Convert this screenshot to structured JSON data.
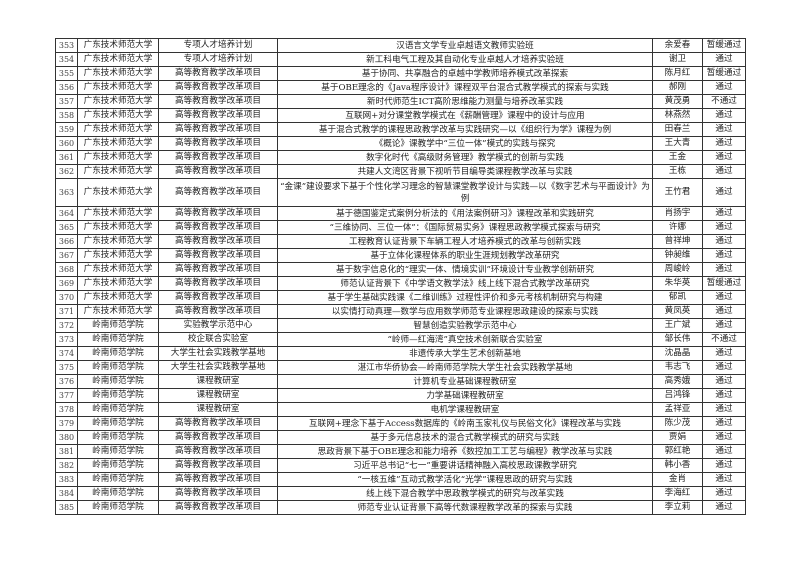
{
  "table": {
    "rows": [
      [
        "353",
        "广东技术师范大学",
        "专项人才培养计划",
        "汉语言文学专业卓越语文教师实验班",
        "余爱春",
        "暂缓通过"
      ],
      [
        "354",
        "广东技术师范大学",
        "专项人才培养计划",
        "新工科电气工程及其自动化专业卓越人才培养实验班",
        "谢卫",
        "通过"
      ],
      [
        "355",
        "广东技术师范大学",
        "高等教育教学改革项目",
        "基于协同、共享融合的卓越中学教师培养模式改革探索",
        "陈月红",
        "暂缓通过"
      ],
      [
        "356",
        "广东技术师范大学",
        "高等教育教学改革项目",
        "基于OBE理念的《Java程序设计》课程双平台混合式教学模式的探索与实践",
        "郝刚",
        "通过"
      ],
      [
        "357",
        "广东技术师范大学",
        "高等教育教学改革项目",
        "新时代师范生ICT高阶思维能力测量与培养改革实践",
        "黄茂勇",
        "不通过"
      ],
      [
        "358",
        "广东技术师范大学",
        "高等教育教学改革项目",
        "互联网+对分课堂教学模式在《薪酬管理》课程中的设计与应用",
        "林燕然",
        "通过"
      ],
      [
        "359",
        "广东技术师范大学",
        "高等教育教学改革项目",
        "基于混合式教学的课程思政教学改革与实践研究—以《组织行为学》课程为例",
        "田春兰",
        "通过"
      ],
      [
        "360",
        "广东技术师范大学",
        "高等教育教学改革项目",
        "《概论》课教学中“三位一体”模式的实践与探究",
        "王大青",
        "通过"
      ],
      [
        "361",
        "广东技术师范大学",
        "高等教育教学改革项目",
        "数字化时代《高级财务管理》教学模式的创新与实践",
        "王金",
        "通过"
      ],
      [
        "362",
        "广东技术师范大学",
        "高等教育教学改革项目",
        "共建人文湾区背景下视听节目编导类课程教学改革与实践",
        "王栋",
        "通过"
      ],
      [
        "363",
        "广东技术师范大学",
        "高等教育教学改革项目",
        "“金课”建设要求下基于个性化学习理念的智慧课堂教学设计与实践—以《数字艺术与平面设计》为例",
        "王竹君",
        "通过"
      ],
      [
        "364",
        "广东技术师范大学",
        "高等教育教学改革项目",
        "基于德国鉴定式案例分析法的《用法案例研习》课程改革和实践研究",
        "肖扬宇",
        "通过"
      ],
      [
        "365",
        "广东技术师范大学",
        "高等教育教学改革项目",
        "“三维协同、三位一体”：《国际贸易实务》课程思政教学模式探索与研究",
        "许娜",
        "通过"
      ],
      [
        "366",
        "广东技术师范大学",
        "高等教育教学改革项目",
        "工程教育认证背景下车辆工程人才培养模式的改革与创新实践",
        "曾祥坤",
        "通过"
      ],
      [
        "367",
        "广东技术师范大学",
        "高等教育教学改革项目",
        "基于立体化课程体系的职业生涯规划教学改革研究",
        "钟昶维",
        "通过"
      ],
      [
        "368",
        "广东技术师范大学",
        "高等教育教学改革项目",
        "基于数字信息化的“理实一体、情境实训”环境设计专业教学创新研究",
        "周峻岭",
        "通过"
      ],
      [
        "369",
        "广东技术师范大学",
        "高等教育教学改革项目",
        "师范认证背景下《中学语文教学法》线上线下混合式教学改革研究",
        "朱华英",
        "暂缓通过"
      ],
      [
        "370",
        "广东技术师范大学",
        "高等教育教学改革项目",
        "基于学生基础实践课《二维训练》过程性评价和多元考核机制研究与构建",
        "郁凯",
        "通过"
      ],
      [
        "371",
        "广东技术师范大学",
        "高等教育教学改革项目",
        "以实情打动真理—数学与应用数学师范专业课程思政建设的探索与实践",
        "黄凤英",
        "通过"
      ],
      [
        "372",
        "岭南师范学院",
        "实验教学示范中心",
        "智慧创造实验教学示范中心",
        "王广斌",
        "通过"
      ],
      [
        "373",
        "岭南师范学院",
        "校企联合实验室",
        "“岭师—红海湾”真空技术创新联合实验室",
        "邹长伟",
        "不通过"
      ],
      [
        "374",
        "岭南师范学院",
        "大学生社会实践教学基地",
        "非遗传承大学生艺术创新基地",
        "沈晶晶",
        "通过"
      ],
      [
        "375",
        "岭南师范学院",
        "大学生社会实践教学基地",
        "湛江市华侨协会—岭南师范学院大学生社会实践教学基地",
        "韦志飞",
        "通过"
      ],
      [
        "376",
        "岭南师范学院",
        "课程教研室",
        "计算机专业基础课程教研室",
        "高秀娥",
        "通过"
      ],
      [
        "377",
        "岭南师范学院",
        "课程教研室",
        "力学基础课程教研室",
        "吕鸿锋",
        "通过"
      ],
      [
        "378",
        "岭南师范学院",
        "课程教研室",
        "电机学课程教研室",
        "孟祥亚",
        "通过"
      ],
      [
        "379",
        "岭南师范学院",
        "高等教育教学改革项目",
        "互联网+理念下基于Access数据库的《岭南玉家礼仪与民俗文化》课程改革与实践",
        "陈少茂",
        "通过"
      ],
      [
        "380",
        "岭南师范学院",
        "高等教育教学改革项目",
        "基于多元信息技术的混合式教学模式的研究与实践",
        "贾娟",
        "通过"
      ],
      [
        "381",
        "岭南师范学院",
        "高等教育教学改革项目",
        "思政背景下基于OBE理念和能力培养《数控加工工艺与编程》教学改革与实践",
        "郭红艳",
        "通过"
      ],
      [
        "382",
        "岭南师范学院",
        "高等教育教学改革项目",
        "习近平总书记“七一”重要讲话精神融入高校思政课教学研究",
        "韩小香",
        "通过"
      ],
      [
        "383",
        "岭南师范学院",
        "高等教育教学改革项目",
        "“一核五维”互动式教学活化“光学”课程思政的研究与实践",
        "金肖",
        "通过"
      ],
      [
        "384",
        "岭南师范学院",
        "高等教育教学改革项目",
        "线上线下混合教学中思政教学模式的研究与改革实践",
        "李海红",
        "通过"
      ],
      [
        "385",
        "岭南师范学院",
        "高等教育教学改革项目",
        "师范专业认证背景下高等代数课程教学改革的探索与实践",
        "李立莉",
        "通过"
      ]
    ]
  }
}
